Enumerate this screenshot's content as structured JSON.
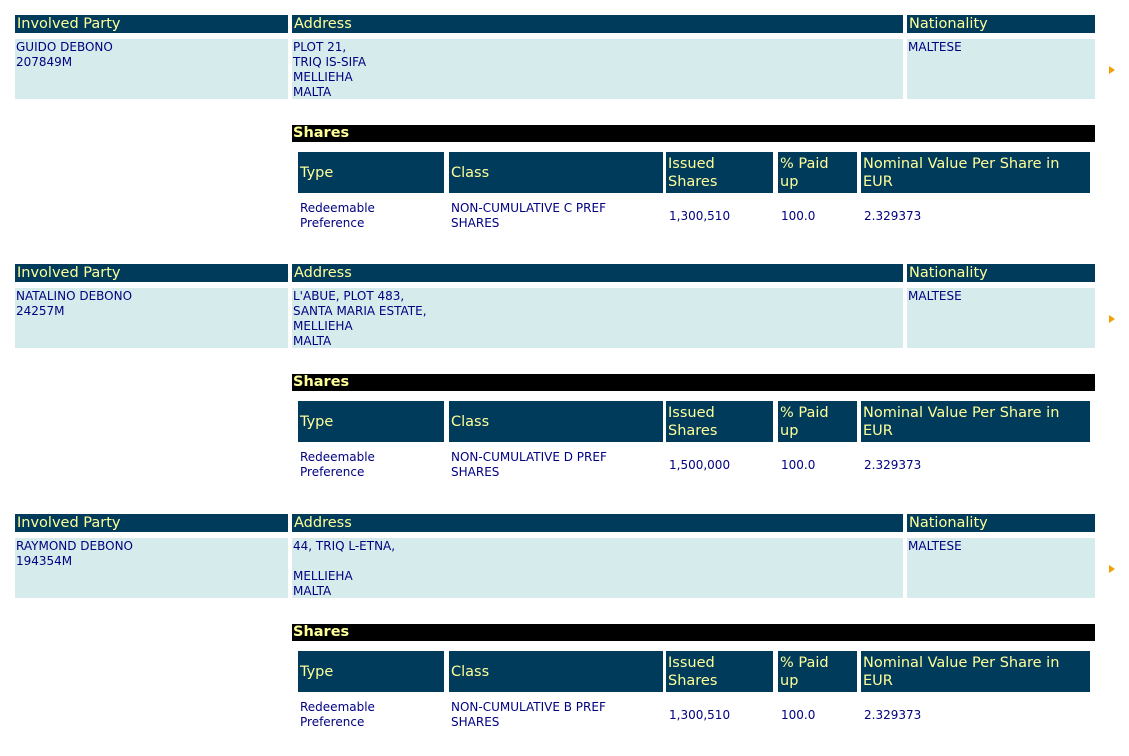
{
  "headers": {
    "involved_party": "Involved Party",
    "address": "Address",
    "nationality": "Nationality"
  },
  "shares_title": "Shares",
  "share_headers": {
    "type": "Type",
    "class": "Class",
    "issued_1": "Issued",
    "issued_2": "Shares",
    "paid_1": "% Paid",
    "paid_2": "up",
    "nominal_1": "Nominal Value Per Share in",
    "nominal_2": "EUR"
  },
  "parties": [
    {
      "name": "GUIDO DEBONO",
      "id": "207849M",
      "address": [
        "PLOT 21,",
        "TRIQ IS-SIFA",
        "MELLIEHA",
        "MALTA"
      ],
      "nationality": "MALTESE",
      "share": {
        "type_1": "Redeemable",
        "type_2": "Preference",
        "class_1": "NON-CUMULATIVE C PREF",
        "class_2": "SHARES",
        "issued": "1,300,510",
        "paid": "100.0",
        "nominal": "2.329373"
      }
    },
    {
      "name": "NATALINO DEBONO",
      "id": "24257M",
      "address": [
        "L'ABUE, PLOT 483,",
        "SANTA MARIA ESTATE,",
        "MELLIEHA",
        "MALTA"
      ],
      "nationality": "MALTESE",
      "share": {
        "type_1": "Redeemable",
        "type_2": "Preference",
        "class_1": "NON-CUMULATIVE D PREF",
        "class_2": "SHARES",
        "issued": "1,500,000",
        "paid": "100.0",
        "nominal": "2.329373"
      }
    },
    {
      "name": "RAYMOND DEBONO",
      "id": "194354M",
      "address": [
        "44, TRIQ L-ETNA,",
        "",
        "MELLIEHA",
        "MALTA"
      ],
      "nationality": "MALTESE",
      "share": {
        "type_1": "Redeemable",
        "type_2": "Preference",
        "class_1": "NON-CUMULATIVE B PREF",
        "class_2": "SHARES",
        "issued": "1,300,510",
        "paid": "100.0",
        "nominal": "2.329373"
      }
    }
  ]
}
